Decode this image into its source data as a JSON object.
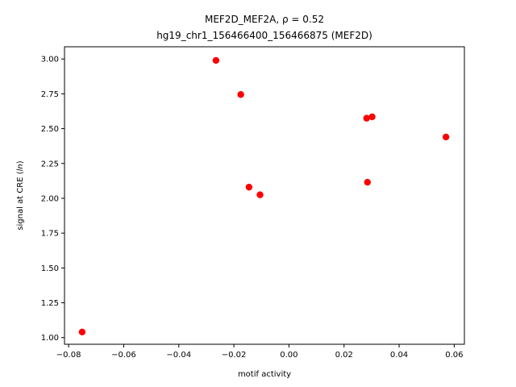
{
  "chart_data": {
    "type": "scatter",
    "title_line1": "MEF2D_MEF2A, ρ = 0.52",
    "title_line2": "hg19_chr1_156466400_156466875 (MEF2D)",
    "xlabel": "motif activity",
    "ylabel_prefix": "signal at CRE (",
    "ylabel_italic": "ln",
    "ylabel_suffix": ")",
    "xlim": [
      -0.0815,
      0.0637
    ],
    "ylim": [
      0.952,
      3.088
    ],
    "xticks": [
      -0.08,
      -0.06,
      -0.04,
      -0.02,
      0.0,
      0.02,
      0.04,
      0.06
    ],
    "xtick_labels": [
      "−0.08",
      "−0.06",
      "−0.04",
      "−0.02",
      "0.00",
      "0.02",
      "0.04",
      "0.06"
    ],
    "yticks": [
      1.0,
      1.25,
      1.5,
      1.75,
      2.0,
      2.25,
      2.5,
      2.75,
      3.0
    ],
    "ytick_labels": [
      "1.00",
      "1.25",
      "1.50",
      "1.75",
      "2.00",
      "2.25",
      "2.50",
      "2.75",
      "3.00"
    ],
    "point_color": "#ff0000",
    "grid": false,
    "points": [
      {
        "x": -0.0751,
        "y": 1.04
      },
      {
        "x": -0.0265,
        "y": 2.99
      },
      {
        "x": -0.0175,
        "y": 2.745
      },
      {
        "x": -0.0145,
        "y": 2.08
      },
      {
        "x": -0.0105,
        "y": 2.025
      },
      {
        "x": 0.0282,
        "y": 2.575
      },
      {
        "x": 0.0302,
        "y": 2.585
      },
      {
        "x": 0.0285,
        "y": 2.115
      },
      {
        "x": 0.057,
        "y": 2.44
      }
    ]
  }
}
